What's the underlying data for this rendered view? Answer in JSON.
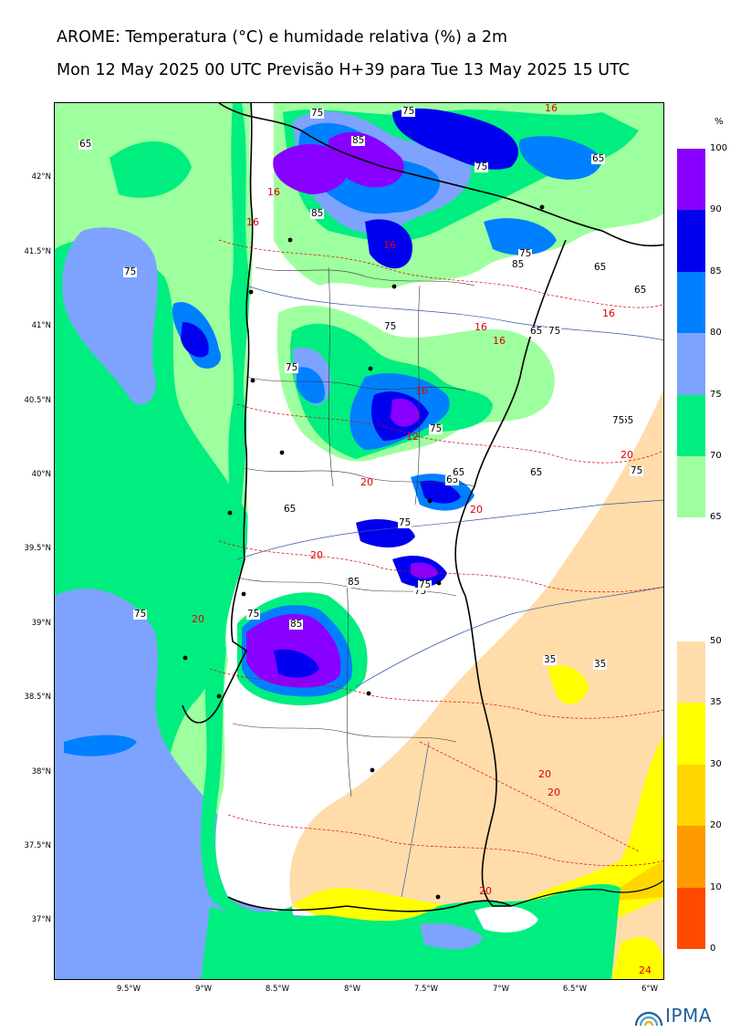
{
  "header": {
    "title": "AROME: Temperatura (°C) e humidade relativa (%) a 2m",
    "subtitle": "Mon 12 May 2025 00 UTC Previsão H+39 para Tue 13 May 2025 15 UTC"
  },
  "axes": {
    "lat_labels": [
      "42°N",
      "41.5°N",
      "41°N",
      "40.5°N",
      "40°N",
      "39.5°N",
      "39°N",
      "38.5°N",
      "38°N",
      "37.5°N",
      "37°N"
    ],
    "lon_labels": [
      "9.5°W",
      "9°W",
      "8.5°W",
      "8°W",
      "7.5°W",
      "7°W",
      "6.5°W",
      "6°W"
    ]
  },
  "humidity_scale": {
    "unit": "%",
    "levels": [
      "100",
      "90",
      "85",
      "80",
      "75",
      "70",
      "65"
    ],
    "colors": [
      "#8800ff",
      "#0000ee",
      "#0080ff",
      "#7da3ff",
      "#00ee80",
      "#9eff9e"
    ]
  },
  "temperature_scale": {
    "levels": [
      "50",
      "35",
      "30",
      "20",
      "10",
      "0"
    ],
    "colors": [
      "#ffdcaa",
      "#ffff00",
      "#ffd700",
      "#ff9a00",
      "#ff4a00"
    ]
  },
  "contour_labels": {
    "humidity": [
      "65",
      "75",
      "85",
      "75",
      "85",
      "75",
      "75",
      "65",
      "75",
      "85",
      "65",
      "65",
      "75",
      "75",
      "75",
      "75",
      "65",
      "65",
      "75",
      "75",
      "65",
      "75",
      "65",
      "75",
      "75",
      "85",
      "85",
      "75",
      "75",
      "65",
      "65",
      "35",
      "35"
    ],
    "temperature": [
      "16",
      "16",
      "16",
      "16",
      "16",
      "16",
      "16",
      "16",
      "20",
      "20",
      "20",
      "20",
      "20",
      "20",
      "20",
      "24",
      "20",
      "12"
    ]
  },
  "logo": {
    "text": "IPMA"
  }
}
